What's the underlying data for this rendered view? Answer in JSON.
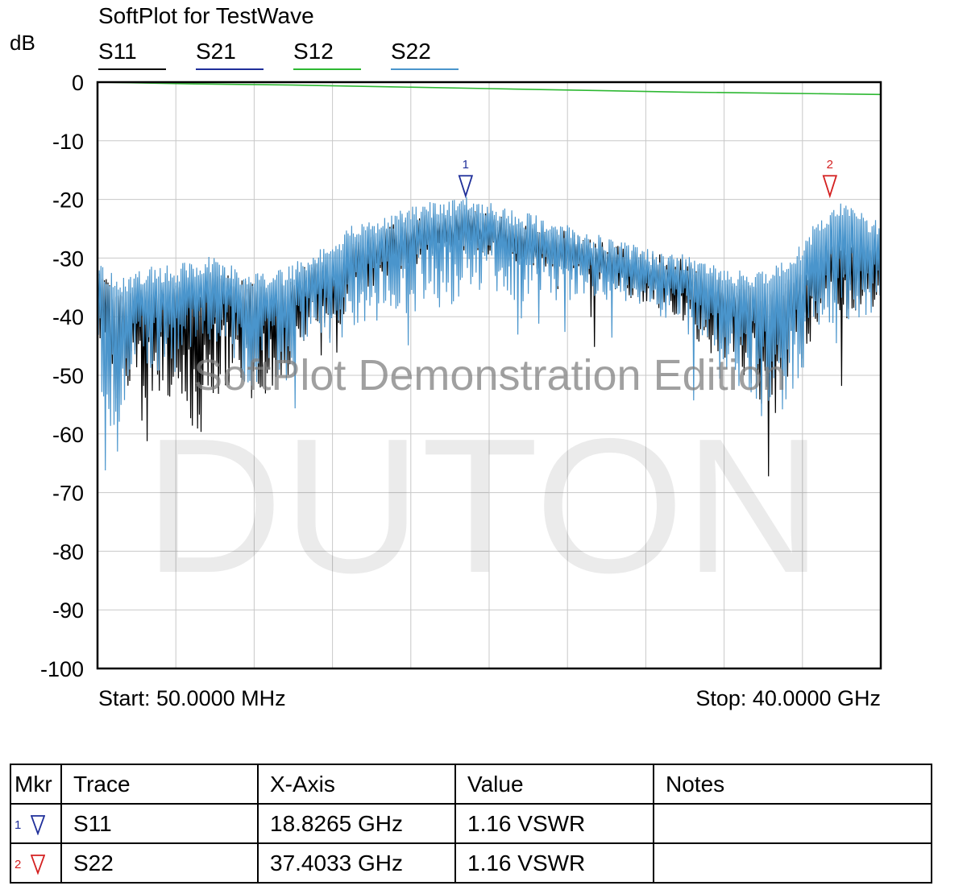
{
  "chart_data": {
    "type": "line",
    "title": "SoftPlot for TestWave",
    "ylabel": "dB",
    "ylim": [
      -100,
      0
    ],
    "yticks": [
      0,
      -10,
      -20,
      -30,
      -40,
      -50,
      -60,
      -70,
      -80,
      -90,
      -100
    ],
    "ytick_labels": [
      "0",
      "-10",
      "-20",
      "-30",
      "-40",
      "-50",
      "-60",
      "-70",
      "-80",
      "-90",
      "-100"
    ],
    "xlim_ghz": [
      0.05,
      40
    ],
    "start_label": "Start: 50.0000 MHz",
    "stop_label": "Stop: 40.0000 GHz",
    "grid": true,
    "watermark_line1": "SoftPlot Demonstration Edition",
    "watermark_line2": "DUTON",
    "legend": [
      {
        "name": "S11",
        "color": "#000000"
      },
      {
        "name": "S21",
        "color": "#1f2f9a"
      },
      {
        "name": "S12",
        "color": "#2db832"
      },
      {
        "name": "S22",
        "color": "#4a95cc"
      }
    ],
    "series": [
      {
        "name": "S12",
        "color": "#2db832",
        "x": [
          0.05,
          5,
          10,
          15,
          20,
          25,
          30,
          35,
          40
        ],
        "values": [
          0,
          -0.3,
          -0.5,
          -0.8,
          -1.1,
          -1.4,
          -1.7,
          -1.9,
          -2.1
        ]
      },
      {
        "name": "S11",
        "color": "#000000",
        "x": [
          0.05,
          1,
          2,
          3,
          4,
          5,
          6,
          7,
          8,
          9,
          10,
          11,
          12,
          13,
          14,
          15,
          16,
          17,
          18,
          19,
          20,
          21,
          22,
          23,
          24,
          25,
          26,
          27,
          28,
          29,
          30,
          31,
          32,
          33,
          34,
          35,
          36,
          37,
          38,
          39,
          40
        ],
        "values": [
          -33,
          -40,
          -38,
          -39,
          -37,
          -38,
          -36,
          -37,
          -38,
          -39,
          -37,
          -34,
          -35,
          -31,
          -30,
          -28,
          -27,
          -26,
          -26,
          -25,
          -26,
          -27,
          -28,
          -29,
          -29,
          -30,
          -31,
          -32,
          -33,
          -33,
          -34,
          -36,
          -37,
          -38,
          -39,
          -38,
          -36,
          -31,
          -30,
          -31,
          -30
        ],
        "dip_depth": [
          10,
          12,
          14,
          12,
          15,
          20,
          16,
          12,
          14,
          12,
          10,
          6,
          8,
          5,
          5,
          4,
          4,
          3,
          3,
          3,
          3,
          3,
          3,
          3,
          3,
          3,
          3,
          4,
          4,
          5,
          6,
          8,
          10,
          12,
          14,
          12,
          10,
          8,
          10,
          8,
          6
        ]
      },
      {
        "name": "S22",
        "color": "#4a95cc",
        "x": [
          0.05,
          1,
          2,
          3,
          4,
          5,
          6,
          7,
          8,
          9,
          10,
          11,
          12,
          13,
          14,
          15,
          16,
          17,
          18,
          19,
          20,
          21,
          22,
          23,
          24,
          25,
          26,
          27,
          28,
          29,
          30,
          31,
          32,
          33,
          34,
          35,
          36,
          37,
          38,
          39,
          40
        ],
        "values": [
          -34,
          -37,
          -36,
          -35,
          -35,
          -34,
          -33,
          -35,
          -36,
          -36,
          -35,
          -32,
          -31,
          -28,
          -27,
          -26,
          -25,
          -24,
          -24,
          -23,
          -24,
          -25,
          -26,
          -27,
          -28,
          -29,
          -30,
          -31,
          -32,
          -33,
          -33,
          -34,
          -35,
          -36,
          -36,
          -34,
          -31,
          -26,
          -24,
          -26,
          -27
        ],
        "dip_depth": [
          16,
          24,
          10,
          12,
          14,
          12,
          10,
          12,
          14,
          12,
          12,
          10,
          12,
          12,
          12,
          12,
          12,
          12,
          12,
          10,
          10,
          10,
          10,
          8,
          8,
          6,
          6,
          6,
          6,
          6,
          6,
          8,
          12,
          14,
          18,
          20,
          16,
          14,
          14,
          12,
          10
        ]
      }
    ],
    "markers": [
      {
        "id": "1",
        "trace": "S11",
        "x_ghz": 18.8265,
        "x_label": "18.8265 GHz",
        "y_db": -20.5,
        "value": "1.16 VSWR",
        "color": "#1f2f9a"
      },
      {
        "id": "2",
        "trace": "S22",
        "x_ghz": 37.4033,
        "x_label": "37.4033 GHz",
        "y_db": -20.5,
        "value": "1.16 VSWR",
        "color": "#d42020"
      }
    ]
  },
  "table": {
    "headers": {
      "mkr": "Mkr",
      "trace": "Trace",
      "x_axis": "X-Axis",
      "value": "Value",
      "notes": "Notes"
    },
    "rows": [
      {
        "mkr": "1",
        "trace": "S11",
        "x_axis": "18.8265 GHz",
        "value": "1.16 VSWR",
        "notes": "",
        "color": "#1f2f9a"
      },
      {
        "mkr": "2",
        "trace": "S22",
        "x_axis": "37.4033 GHz",
        "value": "1.16 VSWR",
        "notes": "",
        "color": "#d42020"
      }
    ]
  }
}
